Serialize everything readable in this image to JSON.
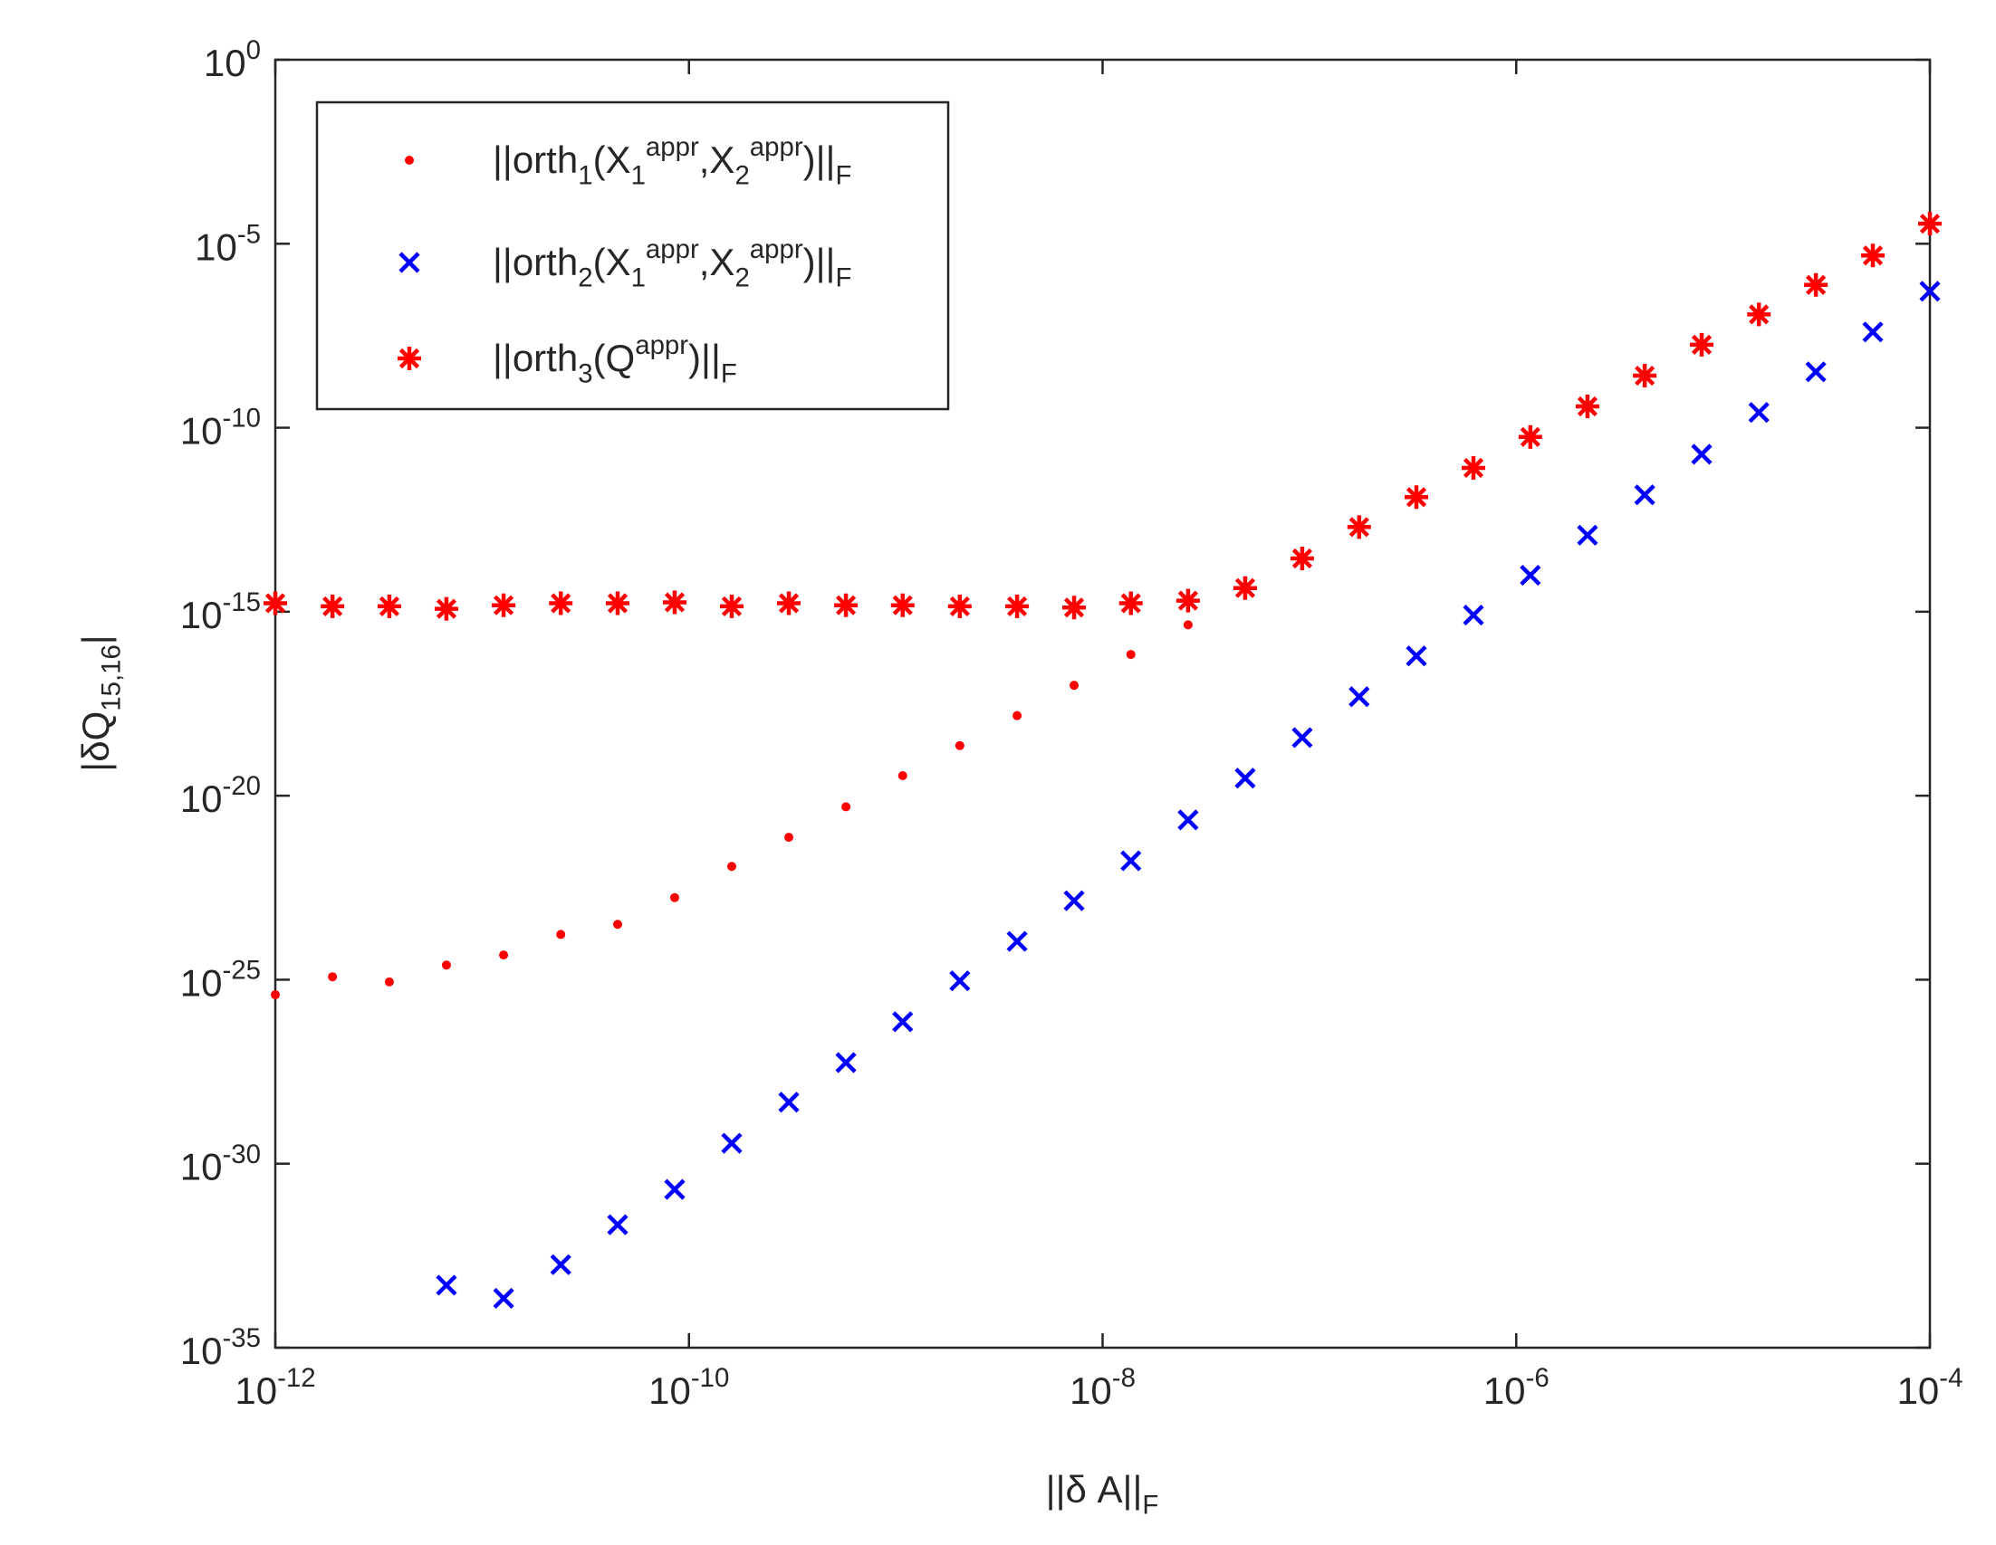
{
  "chart_data": {
    "type": "scatter",
    "xlabel": "||δ A||_F",
    "ylabel": "|δQ_{15,16}|",
    "xscale": "log",
    "yscale": "log",
    "xlim": [
      1e-12,
      0.0001
    ],
    "ylim": [
      1e-35,
      1
    ],
    "xticks": [
      {
        "value": 1e-12,
        "label": "10^{-12}"
      },
      {
        "value": 1e-10,
        "label": "10^{-10}"
      },
      {
        "value": 1e-08,
        "label": "10^{-8}"
      },
      {
        "value": 1e-06,
        "label": "10^{-6}"
      },
      {
        "value": 0.0001,
        "label": "10^{-4}"
      }
    ],
    "yticks": [
      {
        "value": 1e-35,
        "label": "10^{-35}"
      },
      {
        "value": 1e-30,
        "label": "10^{-30}"
      },
      {
        "value": 1e-25,
        "label": "10^{-25}"
      },
      {
        "value": 1e-20,
        "label": "10^{-20}"
      },
      {
        "value": 1e-15,
        "label": "10^{-15}"
      },
      {
        "value": 1e-10,
        "label": "10^{-10}"
      },
      {
        "value": 1e-05,
        "label": "10^{-5}"
      },
      {
        "value": 1,
        "label": "10^{0}"
      }
    ],
    "legend": "upper left",
    "x": [
      1e-12,
      1.89e-12,
      3.56e-12,
      6.72e-12,
      1.27e-11,
      2.4e-11,
      4.52e-11,
      8.53e-11,
      1.61e-10,
      3.04e-10,
      5.74e-10,
      1.08e-09,
      2.04e-09,
      3.86e-09,
      7.28e-09,
      1.37e-08,
      2.59e-08,
      4.89e-08,
      9.23e-08,
      1.74e-07,
      3.29e-07,
      6.21e-07,
      1.17e-06,
      2.21e-06,
      4.18e-06,
      7.88e-06,
      1.49e-05,
      2.81e-05,
      5.3e-05,
      0.0001
    ],
    "series": [
      {
        "name": "||orth_1(X_1^{appr},X_2^{appr})||_F",
        "color": "#ff0000",
        "marker": "dot",
        "values": [
          3.9e-26,
          1.2e-25,
          8.7e-26,
          2.5e-25,
          4.7e-25,
          1.7e-24,
          3.2e-24,
          1.7e-23,
          1.2e-22,
          7.4e-22,
          5e-21,
          3.5e-20,
          2.3e-19,
          1.5e-18,
          1e-17,
          6.9e-17,
          4.4e-16,
          4.4e-15,
          2.8e-14,
          2e-13,
          1.3e-12,
          8.1e-12,
          5.6e-11,
          3.8e-10,
          2.6e-09,
          1.8e-08,
          1.2e-07,
          7.6e-07,
          4.8e-06,
          3.5e-05
        ]
      },
      {
        "name": "||orth_2(X_1^{appr},X_2^{appr})||_F",
        "color": "#0000ff",
        "marker": "x",
        "values": [
          null,
          null,
          null,
          5e-34,
          2.2e-34,
          1.8e-33,
          2.2e-32,
          2e-31,
          3.6e-30,
          4.7e-29,
          5.6e-28,
          7.2e-27,
          9.3e-26,
          1.1e-24,
          1.4e-23,
          1.7e-22,
          2.2e-21,
          3e-20,
          3.8e-19,
          4.9e-18,
          6.3e-17,
          8.1e-16,
          9.8e-15,
          1.2e-13,
          1.5e-12,
          1.9e-11,
          2.6e-10,
          3.3e-09,
          4e-08,
          5.1e-07
        ]
      },
      {
        "name": "||orth_3(Q^{appr})||_F",
        "color": "#ff0000",
        "marker": "star",
        "values": [
          1.7e-15,
          1.4e-15,
          1.4e-15,
          1.2e-15,
          1.5e-15,
          1.7e-15,
          1.7e-15,
          1.8e-15,
          1.4e-15,
          1.7e-15,
          1.5e-15,
          1.5e-15,
          1.4e-15,
          1.4e-15,
          1.3e-15,
          1.7e-15,
          2e-15,
          4.4e-15,
          2.8e-14,
          2e-13,
          1.3e-12,
          8.1e-12,
          5.6e-11,
          3.8e-10,
          2.6e-09,
          1.8e-08,
          1.2e-07,
          7.6e-07,
          4.8e-06,
          3.5e-05
        ]
      }
    ]
  }
}
